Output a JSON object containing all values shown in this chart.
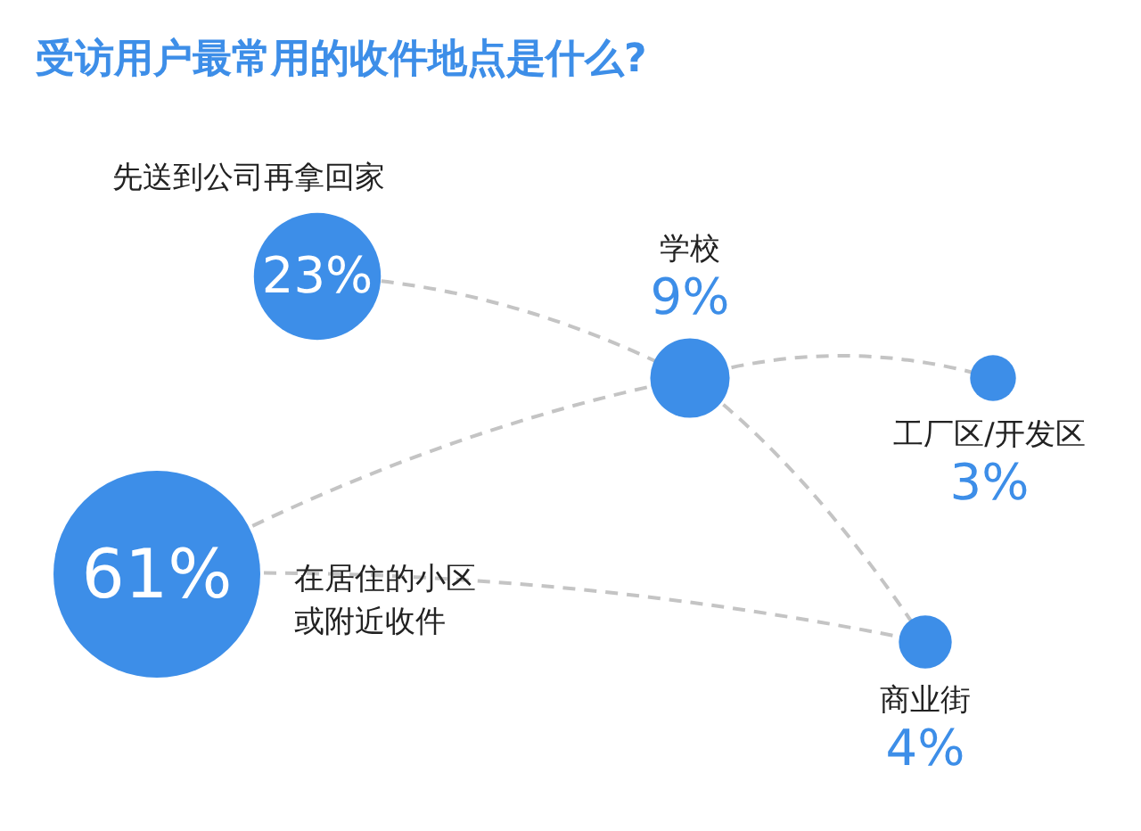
{
  "chart_data": {
    "type": "other",
    "title": "受访用户最常用的收件地点是什么?",
    "categories": [
      "先送到公司再拿回家",
      "学校",
      "工厂区/开发区",
      "商业街",
      "在居住的小区或附近收件"
    ],
    "values": [
      23,
      9,
      3,
      4,
      61
    ],
    "value_labels": [
      "23%",
      "9%",
      "3%",
      "4%",
      "61%"
    ],
    "colors": [
      "#3d8ee8",
      "#3d8ee8",
      "#3d8ee8",
      "#3d8ee8",
      "#3d8ee8"
    ]
  }
}
